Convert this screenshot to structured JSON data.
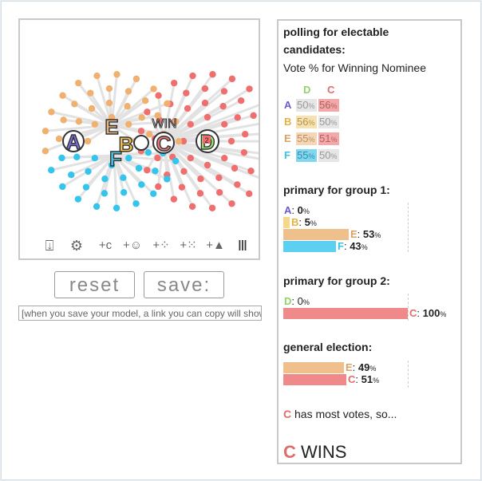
{
  "simulation": {
    "candidates": [
      {
        "letter": "A",
        "color": "#6a5acd"
      },
      {
        "letter": "E",
        "color": "#d9a264"
      },
      {
        "letter": "B",
        "color": "#e2b340"
      },
      {
        "letter": "F",
        "color": "#3bc3e6"
      },
      {
        "letter": "C",
        "color": "#e06d6d"
      },
      {
        "letter": "D",
        "color": "#8fd36a"
      }
    ],
    "win_label": "WIN",
    "d_badge": "2"
  },
  "tools": [
    {
      "name": "ballot-tool-icon",
      "glyph": "⍗"
    },
    {
      "name": "gear-tool-icon",
      "glyph": "⚙"
    },
    {
      "name": "add-candidate-tool-icon",
      "glyph": "+c"
    },
    {
      "name": "add-voter-tool-icon",
      "glyph": "+☺"
    },
    {
      "name": "add-crowd-tool-icon",
      "glyph": "+⁘"
    },
    {
      "name": "add-grid-tool-icon",
      "glyph": "+⁙"
    },
    {
      "name": "add-triangle-tool-icon",
      "glyph": "+▲"
    },
    {
      "name": "columns-tool-icon",
      "glyph": "Ⅲ"
    }
  ],
  "buttons": {
    "reset": "reset",
    "save": "save:"
  },
  "link_placeholder": "[when you save your model, a link you can copy will show",
  "panel": {
    "polling_title": "polling for electable",
    "polling_title2": "candidates:",
    "vote_caption": "Vote % for Winning Nominee",
    "poll_cols": [
      "D",
      "C"
    ],
    "poll_rows": [
      {
        "cand": "A",
        "values": [
          "50",
          "56"
        ]
      },
      {
        "cand": "B",
        "values": [
          "56",
          "50"
        ]
      },
      {
        "cand": "E",
        "values": [
          "55",
          "51"
        ]
      },
      {
        "cand": "F",
        "values": [
          "55",
          "50"
        ]
      }
    ],
    "primary1_title": "primary for group 1:",
    "primary1": [
      {
        "cand": "A",
        "value": "0"
      },
      {
        "cand": "B",
        "value": "5"
      },
      {
        "cand": "E",
        "value": "53"
      },
      {
        "cand": "F",
        "value": "43"
      }
    ],
    "primary2_title": "primary for group 2:",
    "primary2": [
      {
        "cand": "D",
        "value": "0"
      },
      {
        "cand": "C",
        "value": "100"
      }
    ],
    "general_title": "general election:",
    "general": [
      {
        "cand": "E",
        "value": "49"
      },
      {
        "cand": "C",
        "value": "51"
      }
    ],
    "result_letter": "C",
    "result_text": " has most votes, so...",
    "winner_letter": "C",
    "winner_text": " WINS",
    "pct_sign": "%"
  }
}
